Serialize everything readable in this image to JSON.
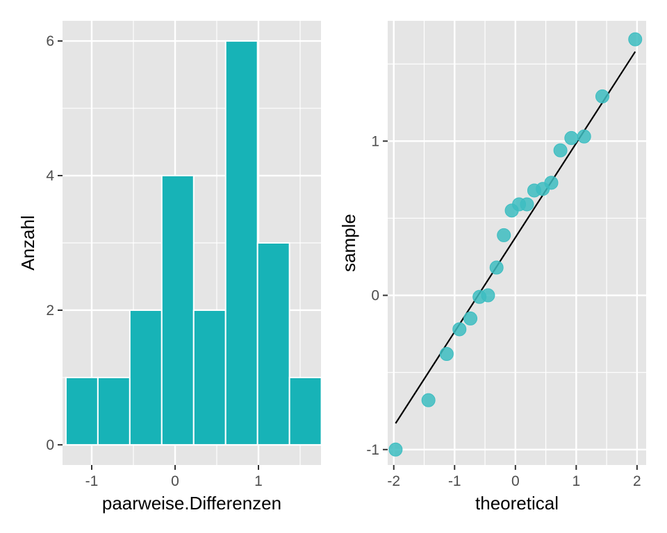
{
  "colors": {
    "panel_bg": "#e5e5e5",
    "grid": "#ffffff",
    "bar_fill": "#17b3b7",
    "bar_outline": "#ffffff",
    "point_fill": "#3dbdc1",
    "ref_line": "#000000",
    "tick_text": "#4d4d4d",
    "tick_mark": "#333333"
  },
  "chart_data": [
    {
      "type": "bar",
      "title": "",
      "xlabel": "paarweise.Differenzen",
      "ylabel": "Anzahl",
      "xlim": [
        -1.35,
        1.75
      ],
      "ylim": [
        -0.3,
        6.3
      ],
      "x_ticks": [
        -1,
        0,
        1
      ],
      "x_tick_labels": [
        "-1",
        "0",
        "1"
      ],
      "y_ticks": [
        0,
        2,
        4,
        6
      ],
      "y_tick_labels": [
        "0",
        "2",
        "4",
        "6"
      ],
      "bin_width": 0.383,
      "bin_starts": [
        -1.309,
        -0.926,
        -0.543,
        -0.16,
        0.223,
        0.606,
        0.989,
        1.372
      ],
      "values": [
        1,
        1,
        2,
        4,
        2,
        6,
        3,
        1
      ],
      "grid": true
    },
    {
      "type": "scatter",
      "title": "",
      "xlabel": "theoretical",
      "ylabel": "sample",
      "xlim": [
        -2.1,
        2.15
      ],
      "ylim": [
        -1.1,
        1.78
      ],
      "x_ticks": [
        -2,
        -1,
        0,
        1,
        2
      ],
      "x_tick_labels": [
        "-2",
        "-1",
        "0",
        "1",
        "2"
      ],
      "y_ticks": [
        -1,
        0,
        1
      ],
      "y_tick_labels": [
        "-1",
        "0",
        "1"
      ],
      "points": [
        {
          "x": -1.97,
          "y": -1.0
        },
        {
          "x": -1.43,
          "y": -0.68
        },
        {
          "x": -1.13,
          "y": -0.38
        },
        {
          "x": -0.92,
          "y": -0.22
        },
        {
          "x": -0.74,
          "y": -0.15
        },
        {
          "x": -0.59,
          "y": -0.01
        },
        {
          "x": -0.45,
          "y": 0.0
        },
        {
          "x": -0.31,
          "y": 0.18
        },
        {
          "x": -0.19,
          "y": 0.39
        },
        {
          "x": -0.06,
          "y": 0.55
        },
        {
          "x": 0.06,
          "y": 0.59
        },
        {
          "x": 0.19,
          "y": 0.59
        },
        {
          "x": 0.31,
          "y": 0.68
        },
        {
          "x": 0.45,
          "y": 0.69
        },
        {
          "x": 0.59,
          "y": 0.73
        },
        {
          "x": 0.74,
          "y": 0.94
        },
        {
          "x": 0.92,
          "y": 1.02
        },
        {
          "x": 1.13,
          "y": 1.03
        },
        {
          "x": 1.43,
          "y": 1.29
        },
        {
          "x": 1.97,
          "y": 1.66
        }
      ],
      "reference_line": {
        "x": [
          -1.97,
          1.97
        ],
        "y": [
          -0.83,
          1.58
        ]
      },
      "grid": true
    }
  ]
}
